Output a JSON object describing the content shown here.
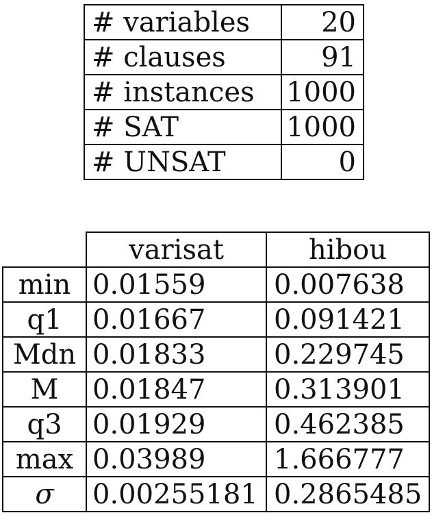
{
  "summary": {
    "rows": [
      {
        "label": "# variables",
        "value": "20"
      },
      {
        "label": "# clauses",
        "value": "91"
      },
      {
        "label": "# instances",
        "value": "1000"
      },
      {
        "label": "# SAT",
        "value": "1000"
      },
      {
        "label": "# UNSAT",
        "value": "0"
      }
    ]
  },
  "stats": {
    "columns": [
      "varisat",
      "hibou"
    ],
    "rows": [
      {
        "label": "min",
        "values": [
          "0.01559",
          "0.007638"
        ]
      },
      {
        "label": "q1",
        "values": [
          "0.01667",
          "0.091421"
        ]
      },
      {
        "label": "Mdn",
        "values": [
          "0.01833",
          "0.229745"
        ]
      },
      {
        "label": "M",
        "values": [
          "0.01847",
          "0.313901"
        ]
      },
      {
        "label": "q3",
        "values": [
          "0.01929",
          "0.462385"
        ]
      },
      {
        "label": "max",
        "values": [
          "0.03989",
          "1.666777"
        ]
      },
      {
        "label": "σ",
        "values": [
          "0.00255181",
          "0.2865485"
        ]
      }
    ]
  }
}
